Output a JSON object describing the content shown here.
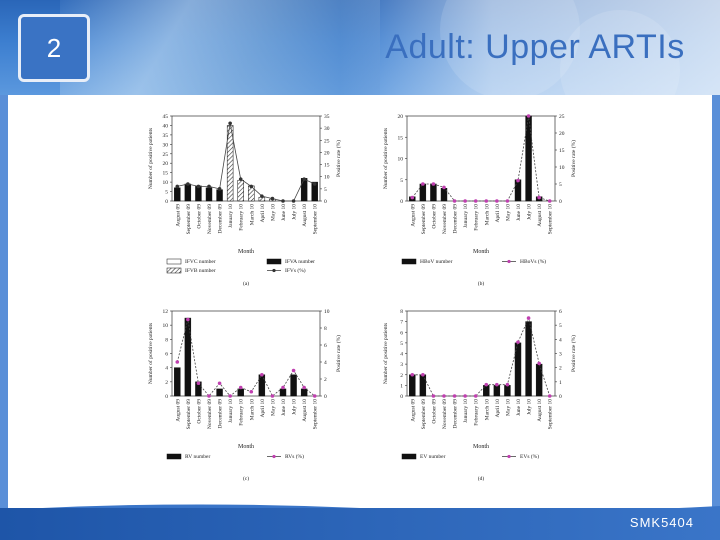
{
  "slide": {
    "number": "2",
    "title": "Adult: Upper ARTIs",
    "footer": "SMK5404",
    "colors": {
      "accent": "#3a6fbf",
      "header": "#2a66b8",
      "footer": "#1e55a8",
      "line_pink": "#c040b0"
    }
  },
  "chart_data": [
    {
      "type": "bar",
      "panel": "(a)",
      "xlabel": "Month",
      "ylabel": "Number of positive patients",
      "y2label": "Positive rate (%)",
      "ylim": [
        0,
        45
      ],
      "yticks": [
        0,
        5,
        10,
        15,
        20,
        25,
        30,
        35,
        40,
        45
      ],
      "y2lim": [
        0,
        35
      ],
      "y2ticks": [
        0,
        5,
        10,
        15,
        20,
        25,
        30,
        35
      ],
      "categories": [
        "August 09",
        "September 09",
        "October 09",
        "November 09",
        "December 09",
        "January 10",
        "February 10",
        "March 10",
        "April 10",
        "May 10",
        "June 10",
        "July 10",
        "August 10",
        "September 10"
      ],
      "series": [
        {
          "name": "IFVC number",
          "kind": "bar",
          "values": [
            0,
            0,
            0,
            0,
            0,
            0,
            0,
            0,
            0,
            0,
            0,
            0,
            0,
            0
          ]
        },
        {
          "name": "IFVA number",
          "kind": "bar",
          "values": [
            7,
            9,
            8,
            7,
            6,
            0,
            0,
            0,
            0,
            0,
            0,
            0,
            12,
            10
          ]
        },
        {
          "name": "IFVB number",
          "kind": "bar",
          "values": [
            0,
            0,
            0,
            0,
            0,
            40,
            11,
            8,
            2,
            1,
            0,
            0,
            0,
            0
          ]
        },
        {
          "name": "IFVs (%)",
          "kind": "line",
          "values": [
            6,
            7,
            6,
            6,
            5,
            32,
            9,
            6,
            2,
            1,
            0,
            0,
            9,
            7
          ]
        }
      ]
    },
    {
      "type": "bar",
      "panel": "(b)",
      "xlabel": "Month",
      "ylabel": "Number of positive patients",
      "y2label": "Positive rate (%)",
      "ylim": [
        0,
        20
      ],
      "yticks": [
        0,
        5,
        10,
        15,
        20
      ],
      "y2lim": [
        0,
        25
      ],
      "y2ticks": [
        0,
        5,
        10,
        15,
        20,
        25
      ],
      "categories": [
        "August 09",
        "September 09",
        "October 09",
        "November 09",
        "December 09",
        "January 10",
        "February 10",
        "March 10",
        "April 10",
        "May 10",
        "June 10",
        "July 10",
        "August 10",
        "September 10"
      ],
      "series": [
        {
          "name": "HBoV number",
          "kind": "bar",
          "values": [
            1,
            4,
            4,
            3,
            0,
            0,
            0,
            0,
            0,
            0,
            5,
            20,
            1,
            0
          ]
        },
        {
          "name": "HBoVs (%)",
          "kind": "line",
          "values": [
            1,
            5,
            5,
            4,
            0,
            0,
            0,
            0,
            0,
            0,
            6,
            25,
            1,
            0
          ]
        }
      ]
    },
    {
      "type": "bar",
      "panel": "(c)",
      "xlabel": "Month",
      "ylabel": "Number of positive patients",
      "y2label": "Positive rate (%)",
      "ylim": [
        0,
        12
      ],
      "yticks": [
        0,
        2,
        4,
        6,
        8,
        10,
        12
      ],
      "y2lim": [
        0,
        10
      ],
      "y2ticks": [
        0,
        2,
        4,
        6,
        8,
        10
      ],
      "categories": [
        "August 09",
        "September 09",
        "October 09",
        "November 09",
        "December 09",
        "January 10",
        "February 10",
        "March 10",
        "April 10",
        "May 10",
        "June 10",
        "July 10",
        "August 10",
        "September 10"
      ],
      "series": [
        {
          "name": "RV number",
          "kind": "bar",
          "values": [
            4,
            11,
            2,
            0,
            1,
            0,
            1,
            0,
            3,
            0,
            1,
            3,
            1,
            0
          ]
        },
        {
          "name": "RVs (%)",
          "kind": "line",
          "values": [
            4,
            9,
            1.5,
            0,
            1.5,
            0,
            1,
            0.5,
            2.5,
            0,
            1,
            3,
            1,
            0
          ]
        }
      ]
    },
    {
      "type": "bar",
      "panel": "(d)",
      "xlabel": "Month",
      "ylabel": "Number of positive patients",
      "y2label": "Positive rate (%)",
      "ylim": [
        0,
        8
      ],
      "yticks": [
        0,
        1,
        2,
        3,
        4,
        5,
        6,
        7,
        8
      ],
      "y2lim": [
        0,
        6
      ],
      "y2ticks": [
        0,
        1,
        2,
        3,
        4,
        5,
        6
      ],
      "categories": [
        "August 09",
        "September 09",
        "October 09",
        "November 09",
        "December 09",
        "January 10",
        "February 10",
        "March 10",
        "April 10",
        "May 10",
        "June 10",
        "July 10",
        "August 10",
        "September 10"
      ],
      "series": [
        {
          "name": "EV number",
          "kind": "bar",
          "values": [
            2,
            2,
            0,
            0,
            0,
            0,
            0,
            1,
            1,
            1,
            5,
            7,
            3,
            0
          ]
        },
        {
          "name": "EVs (%)",
          "kind": "line",
          "values": [
            1.5,
            1.5,
            0,
            0,
            0,
            0,
            0,
            0.8,
            0.8,
            0.8,
            3.8,
            5.5,
            2.3,
            0
          ]
        }
      ]
    }
  ]
}
